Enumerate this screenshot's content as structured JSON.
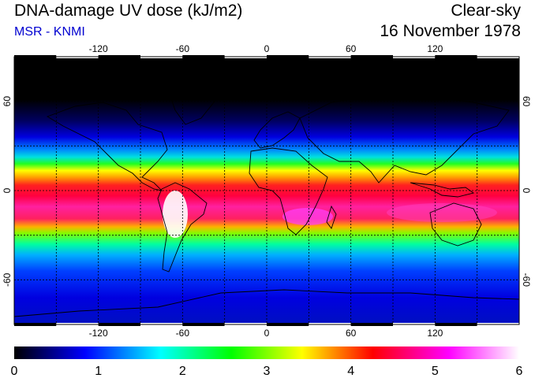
{
  "header": {
    "title": "DNA-damage UV dose (kJ/m2)",
    "subtitle": "MSR - KNMI",
    "condition": "Clear-sky",
    "date": "16 November 1978"
  },
  "map": {
    "projection": "equirectangular",
    "lon_range": [
      -180,
      180
    ],
    "lat_range": [
      -90,
      90
    ],
    "grid_lons": [
      -150,
      -120,
      -90,
      -60,
      -30,
      0,
      30,
      60,
      90,
      120,
      150
    ],
    "grid_lats": [
      -60,
      -30,
      0,
      30,
      60
    ],
    "lon_ticks": [
      "-120",
      "-60",
      "0",
      "60",
      "120"
    ],
    "lat_ticks_left": [
      "60",
      "0",
      "-60"
    ],
    "lat_ticks_right": [
      "60",
      "0",
      "-60"
    ]
  },
  "colorbar": {
    "min": 0,
    "max": 6,
    "labels": [
      "0",
      "1",
      "2",
      "3",
      "4",
      "5",
      "6"
    ],
    "stops": [
      "#000000",
      "#0000ff",
      "#00ffff",
      "#00ff00",
      "#ffff00",
      "#ff0000",
      "#ff00ff",
      "#ffffff"
    ]
  }
}
